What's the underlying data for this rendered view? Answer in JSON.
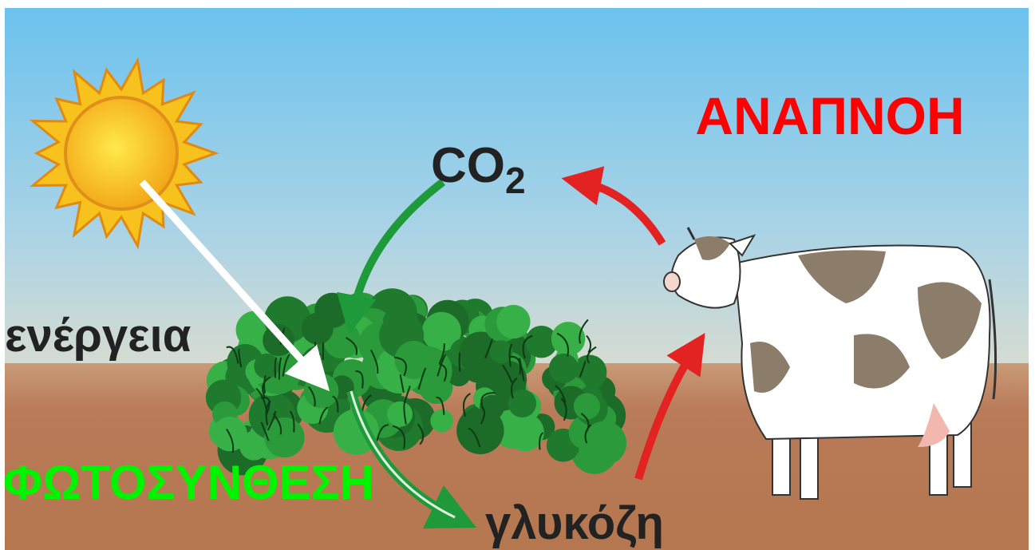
{
  "labels": {
    "respiration": "ΑΝΑΠΝΟΗ",
    "co2": {
      "main": "CO",
      "sub": "2"
    },
    "energy": "ενέργεια",
    "photosynthesis": "ΦΩΤΟΣΥΝΘΕΣΗ",
    "glucose": "γλυκόζη"
  }
}
